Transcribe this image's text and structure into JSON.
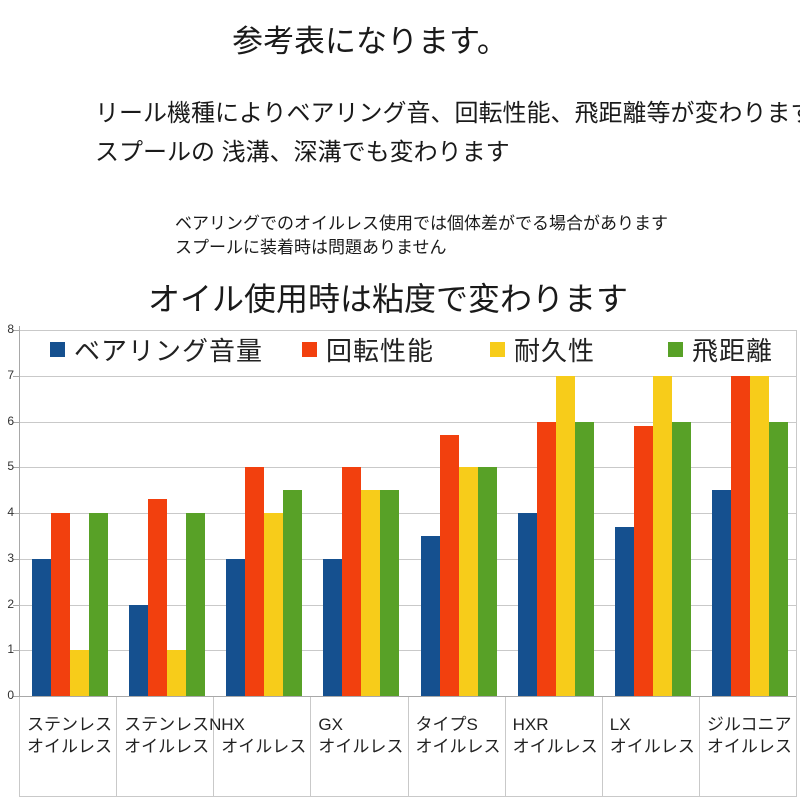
{
  "texts": {
    "title": "参考表になります。",
    "line1": "リール機種によりベアリング音、回転性能、飛距離等が変わります。",
    "line2": "スプールの 浅溝、深溝でも変わります",
    "note1": "ベアリングでのオイルレス使用では個体差がでる場合があります",
    "note2": "スプールに装着時は問題ありません",
    "subtitle": "オイル使用時は粘度で変わります"
  },
  "colors": {
    "grid": "#c9c9c9",
    "axis": "#a8a8a8",
    "text": "#1a1a1a"
  },
  "chart_data": {
    "type": "bar",
    "title": "",
    "xlabel": "",
    "ylabel": "",
    "ylim": [
      0,
      8
    ],
    "yticks": [
      0,
      1,
      2,
      3,
      4,
      5,
      6,
      7,
      8
    ],
    "grid": true,
    "legend_position": "top",
    "categories": [
      {
        "line1": "ステンレス",
        "line2": "オイルレス"
      },
      {
        "line1": "ステンレスN",
        "line2": "オイルレス"
      },
      {
        "line1": "HX",
        "line2": "オイルレス"
      },
      {
        "line1": "GX",
        "line2": "オイルレス"
      },
      {
        "line1": "タイプS",
        "line2": "オイルレス"
      },
      {
        "line1": "HXR",
        "line2": "オイルレス"
      },
      {
        "line1": "LX",
        "line2": "オイルレス"
      },
      {
        "line1": "ジルコニア",
        "line2": "オイルレス"
      }
    ],
    "series": [
      {
        "name": "ベアリング音量",
        "color": "#15508F",
        "values": [
          3,
          2,
          3,
          3,
          3.5,
          4,
          3.7,
          4.5
        ]
      },
      {
        "name": "回転性能",
        "color": "#F2400E",
        "values": [
          4,
          4.3,
          5,
          5,
          5.7,
          6,
          5.9,
          7
        ]
      },
      {
        "name": "耐久性",
        "color": "#F7CC1A",
        "values": [
          1,
          1,
          4,
          4.5,
          5,
          7,
          7,
          7
        ]
      },
      {
        "name": "飛距離",
        "color": "#58A127",
        "values": [
          4,
          4,
          4.5,
          4.5,
          5,
          6,
          6,
          6
        ]
      }
    ]
  }
}
